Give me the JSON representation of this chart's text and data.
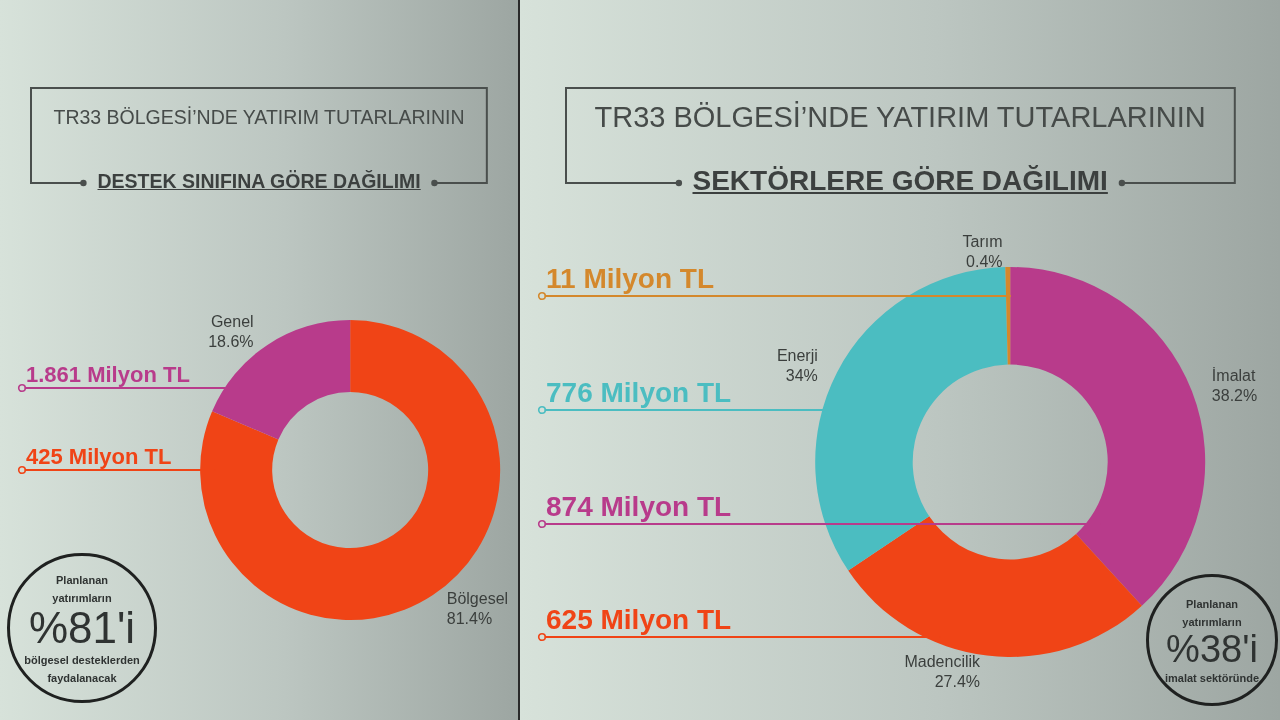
{
  "chart_data": [
    {
      "type": "donut",
      "title": "TR33 BÖLGESİ’NDE YATIRIM TUTARLARININ",
      "subtitle": "DESTEK SINIFINA GÖRE DAĞILIMI",
      "categories": [
        "Bölgesel",
        "Genel"
      ],
      "values": [
        81.4,
        18.6
      ],
      "colors": [
        "#f04416",
        "#b83b8b"
      ],
      "value_labels": [
        "81.4%",
        "18.6%"
      ],
      "annotations": [
        {
          "text": "1.861 Milyon TL",
          "x": "Genel"
        },
        {
          "text": "425 Milyon TL",
          "x": "Bölgesel"
        },
        "Planlanan\nyatırımların\n%81'i\nbölgesel desteklerden\nfaydalanacak"
      ]
    },
    {
      "type": "donut",
      "title": "TR33 BÖLGESİ’NDE YATIRIM TUTARLARININ",
      "subtitle": "SEKTÖRLERE GÖRE DAĞILIMI",
      "categories": [
        "İmalat",
        "Madencilik",
        "Enerji",
        "Tarım"
      ],
      "values": [
        38.2,
        27.4,
        34,
        0.4
      ],
      "colors": [
        "#b83b8b",
        "#f04416",
        "#4bbdc1",
        "#d4882c"
      ],
      "value_labels": [
        "38.2%",
        "27.4%",
        "34%",
        "0.4%"
      ],
      "annotations": [
        {
          "text": "11 Milyon TL",
          "x": "Tarım"
        },
        {
          "text": "776 Milyon TL",
          "x": "Enerji"
        },
        {
          "text": "874 Milyon TL",
          "x": "İmalat"
        },
        {
          "text": "625 Milyon TL",
          "x": "Madencilik"
        },
        "Planlanan\nyatırımların\n%38'i\nimalat sektöründe"
      ]
    }
  ]
}
